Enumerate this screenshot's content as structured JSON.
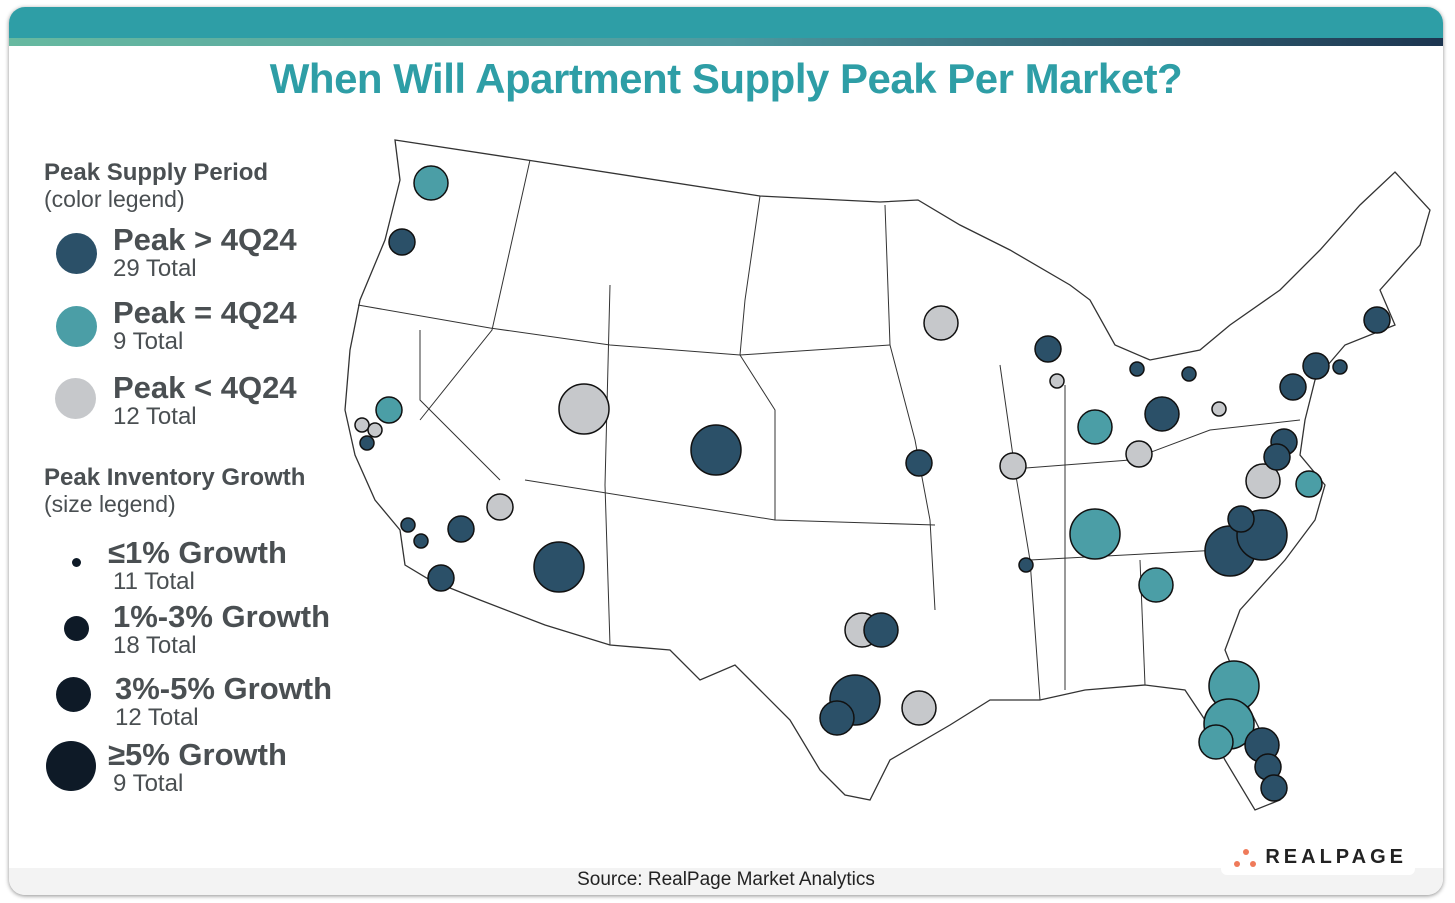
{
  "title": "When Will Apartment Supply Peak Per Market?",
  "source": "Source: RealPage Market Analytics",
  "logo": "REALPAGE",
  "colors": {
    "peak_after": "#2b5068",
    "peak_at": "#4b9ea6",
    "peak_before": "#c6c8cb",
    "size_legend": "#0e1a27",
    "brand": "#2e9ea6",
    "logo_dots": "#ef7a5a"
  },
  "color_legend": {
    "heading": "Peak Supply Period",
    "sub": "(color legend)",
    "items": [
      {
        "label": "Peak > 4Q24",
        "total": "29 Total"
      },
      {
        "label": "Peak = 4Q24",
        "total": "9 Total"
      },
      {
        "label": "Peak < 4Q24",
        "total": "12 Total"
      }
    ]
  },
  "size_legend": {
    "heading": "Peak Inventory Growth",
    "sub": "(size legend)",
    "items": [
      {
        "label": "≤1% Growth",
        "total": "11 Total"
      },
      {
        "label": "1%-3% Growth",
        "total": "18 Total"
      },
      {
        "label": "3%-5% Growth",
        "total": "12 Total"
      },
      {
        "label": "≥5% Growth",
        "total": "9 Total"
      }
    ]
  },
  "markets": [
    {
      "period": "peak_at",
      "growth": 2
    },
    {
      "period": "peak_after",
      "growth": 1
    },
    {
      "period": "peak_at",
      "growth": 1
    },
    {
      "period": "peak_before",
      "growth": 0
    },
    {
      "period": "peak_before",
      "growth": 0
    },
    {
      "period": "peak_after",
      "growth": 0
    },
    {
      "period": "peak_after",
      "growth": 0
    },
    {
      "period": "peak_after",
      "growth": 0
    },
    {
      "period": "peak_after",
      "growth": 1
    },
    {
      "period": "peak_after",
      "growth": 1
    },
    {
      "period": "peak_before",
      "growth": 1
    },
    {
      "period": "peak_after",
      "growth": 3
    },
    {
      "period": "peak_before",
      "growth": 3
    },
    {
      "period": "peak_after",
      "growth": 3
    },
    {
      "period": "peak_before",
      "growth": 2
    },
    {
      "period": "peak_after",
      "growth": 1
    },
    {
      "period": "peak_before",
      "growth": 1
    },
    {
      "period": "peak_after",
      "growth": 1
    },
    {
      "period": "peak_before",
      "growth": 0
    },
    {
      "period": "peak_at",
      "growth": 2
    },
    {
      "period": "peak_after",
      "growth": 0
    },
    {
      "period": "peak_after",
      "growth": 0
    },
    {
      "period": "peak_after",
      "growth": 2
    },
    {
      "period": "peak_before",
      "growth": 1
    },
    {
      "period": "peak_before",
      "growth": 0
    },
    {
      "period": "peak_after",
      "growth": 1
    },
    {
      "period": "peak_after",
      "growth": 1
    },
    {
      "period": "peak_after",
      "growth": 0
    },
    {
      "period": "peak_after",
      "growth": 1
    },
    {
      "period": "peak_after",
      "growth": 1
    },
    {
      "period": "peak_after",
      "growth": 1
    },
    {
      "period": "peak_before",
      "growth": 2
    },
    {
      "period": "peak_at",
      "growth": 1
    },
    {
      "period": "peak_at",
      "growth": 3
    },
    {
      "period": "peak_after",
      "growth": 0
    },
    {
      "period": "peak_at",
      "growth": 2
    },
    {
      "period": "peak_after",
      "growth": 1
    },
    {
      "period": "peak_after",
      "growth": 3
    },
    {
      "period": "peak_after",
      "growth": 3
    },
    {
      "period": "peak_before",
      "growth": 2
    },
    {
      "period": "peak_after",
      "growth": 2
    },
    {
      "period": "peak_after",
      "growth": 3
    },
    {
      "period": "peak_after",
      "growth": 2
    },
    {
      "period": "peak_before",
      "growth": 2
    },
    {
      "period": "peak_at",
      "growth": 3
    },
    {
      "period": "peak_at",
      "growth": 3
    },
    {
      "period": "peak_at",
      "growth": 2
    },
    {
      "period": "peak_after",
      "growth": 2
    },
    {
      "period": "peak_after",
      "growth": 1
    },
    {
      "period": "peak_after",
      "growth": 1
    }
  ]
}
